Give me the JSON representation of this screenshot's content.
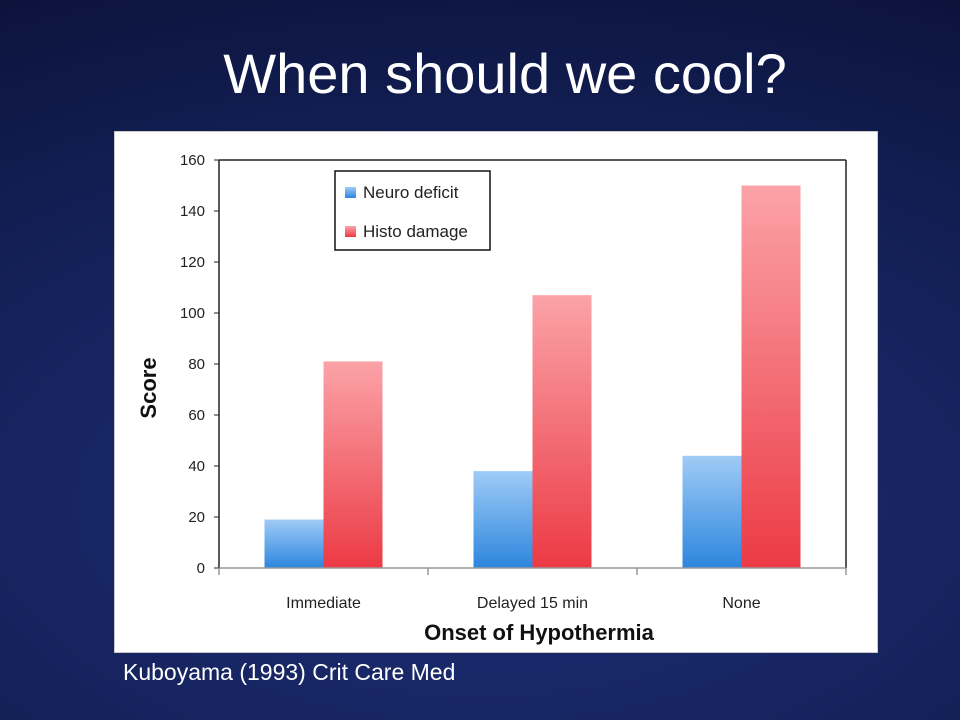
{
  "slide": {
    "title": "When should we cool?",
    "citation": "Kuboyama (1993) Crit Care Med"
  },
  "chart_data": {
    "type": "bar",
    "categories": [
      "Immediate",
      "Delayed 15 min",
      "None"
    ],
    "series": [
      {
        "name": "Neuro deficit",
        "values": [
          19,
          38,
          44
        ],
        "color": "#3d8fe0"
      },
      {
        "name": "Histo damage",
        "values": [
          81,
          107,
          150
        ],
        "color": "#ee4a55"
      }
    ],
    "xlabel": "Onset of Hypothermia",
    "ylabel": "Score",
    "ylim": [
      0,
      160
    ],
    "yticks": [
      0,
      20,
      40,
      60,
      80,
      100,
      120,
      140,
      160
    ],
    "grid": false,
    "legend_position": "top-left"
  }
}
